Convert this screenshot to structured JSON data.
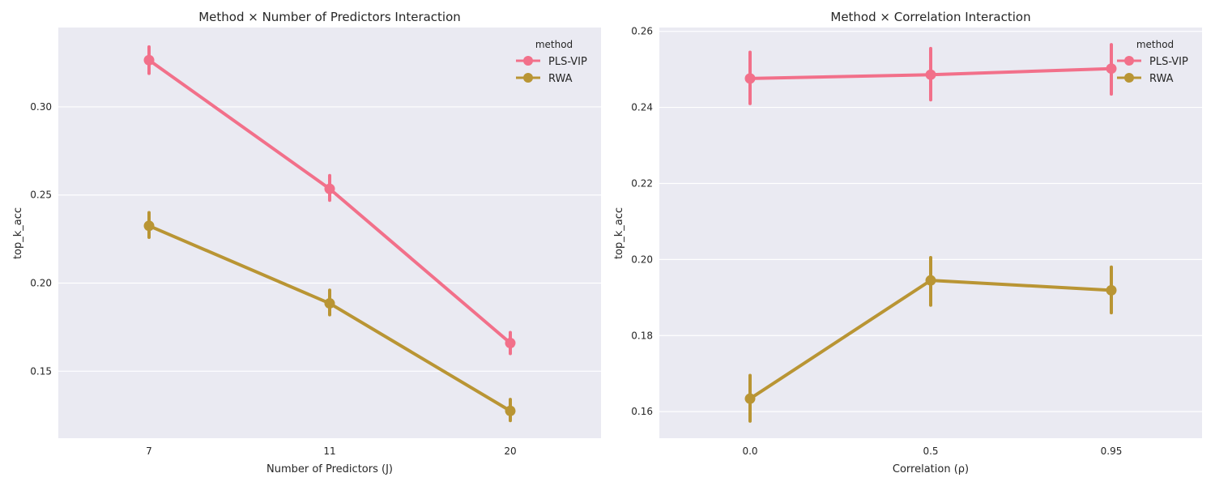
{
  "colors": {
    "PLS-VIP": "#f2708a",
    "RWA": "#b99534",
    "panel_bg": "#eaeaf2",
    "grid": "#ffffff"
  },
  "chart_data": [
    {
      "type": "line",
      "title": "Method × Number of Predictors Interaction",
      "xlabel": "Number of Predictors (J)",
      "ylabel": "top_k_acc",
      "categories": [
        "7",
        "11",
        "20"
      ],
      "ylim": [
        0.112,
        0.345
      ],
      "yticks": [
        "0.15",
        "0.20",
        "0.25",
        "0.30"
      ],
      "ytick_values": [
        0.15,
        0.2,
        0.25,
        0.3
      ],
      "grid": true,
      "legend": {
        "title": "method",
        "placement": "top-right"
      },
      "series": [
        {
          "name": "PLS-VIP",
          "values": [
            0.3265,
            0.2535,
            0.166
          ],
          "err_low": [
            0.319,
            0.247,
            0.16
          ],
          "err_high": [
            0.334,
            0.261,
            0.172
          ]
        },
        {
          "name": "RWA",
          "values": [
            0.2325,
            0.1885,
            0.1275
          ],
          "err_low": [
            0.226,
            0.182,
            0.122
          ],
          "err_high": [
            0.24,
            0.196,
            0.134
          ]
        }
      ]
    },
    {
      "type": "line",
      "title": "Method × Correlation Interaction",
      "xlabel": "Correlation (ρ)",
      "ylabel": "top_k_acc",
      "categories": [
        "0.0",
        "0.5",
        "0.95"
      ],
      "ylim": [
        0.153,
        0.261
      ],
      "yticks": [
        "0.16",
        "0.18",
        "0.20",
        "0.22",
        "0.24",
        "0.26"
      ],
      "ytick_values": [
        0.16,
        0.18,
        0.2,
        0.22,
        0.24,
        0.26
      ],
      "grid": true,
      "legend": {
        "title": "method",
        "placement": "top-right"
      },
      "series": [
        {
          "name": "PLS-VIP",
          "values": [
            0.2476,
            0.2486,
            0.2502
          ],
          "err_low": [
            0.241,
            0.242,
            0.2435
          ],
          "err_high": [
            0.2545,
            0.2555,
            0.2565
          ]
        },
        {
          "name": "RWA",
          "values": [
            0.1634,
            0.1945,
            0.1919
          ],
          "err_low": [
            0.1575,
            0.188,
            0.186
          ],
          "err_high": [
            0.1695,
            0.2005,
            0.198
          ]
        }
      ]
    }
  ]
}
